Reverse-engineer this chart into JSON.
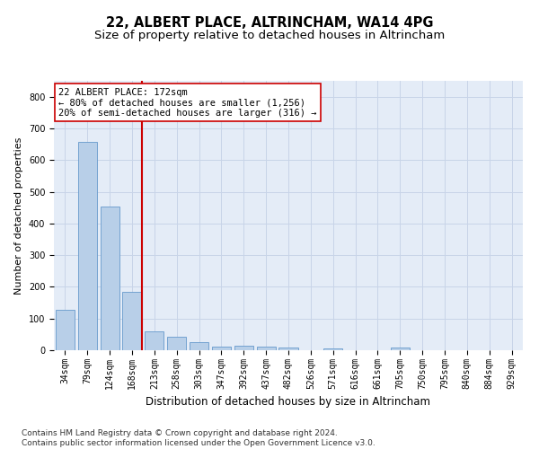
{
  "title": "22, ALBERT PLACE, ALTRINCHAM, WA14 4PG",
  "subtitle": "Size of property relative to detached houses in Altrincham",
  "xlabel": "Distribution of detached houses by size in Altrincham",
  "ylabel": "Number of detached properties",
  "categories": [
    "34sqm",
    "79sqm",
    "124sqm",
    "168sqm",
    "213sqm",
    "258sqm",
    "303sqm",
    "347sqm",
    "392sqm",
    "437sqm",
    "482sqm",
    "526sqm",
    "571sqm",
    "616sqm",
    "661sqm",
    "705sqm",
    "750sqm",
    "795sqm",
    "840sqm",
    "884sqm",
    "929sqm"
  ],
  "values": [
    128,
    657,
    452,
    184,
    59,
    43,
    25,
    11,
    13,
    12,
    9,
    0,
    7,
    0,
    0,
    8,
    0,
    0,
    0,
    0,
    0
  ],
  "bar_color": "#b8cfe8",
  "bar_edge_color": "#6699cc",
  "marker_bin_index": 3,
  "marker_color": "#cc0000",
  "annotation_line1": "22 ALBERT PLACE: 172sqm",
  "annotation_line2": "← 80% of detached houses are smaller (1,256)",
  "annotation_line3": "20% of semi-detached houses are larger (316) →",
  "annotation_box_color": "#ffffff",
  "annotation_box_edge": "#cc0000",
  "ylim": [
    0,
    850
  ],
  "yticks": [
    0,
    100,
    200,
    300,
    400,
    500,
    600,
    700,
    800
  ],
  "grid_color": "#c8d4e8",
  "bg_color": "#e4ecf7",
  "footnote": "Contains HM Land Registry data © Crown copyright and database right 2024.\nContains public sector information licensed under the Open Government Licence v3.0.",
  "title_fontsize": 10.5,
  "subtitle_fontsize": 9.5,
  "xlabel_fontsize": 8.5,
  "ylabel_fontsize": 8,
  "tick_fontsize": 7,
  "annotation_fontsize": 7.5,
  "footnote_fontsize": 6.5
}
